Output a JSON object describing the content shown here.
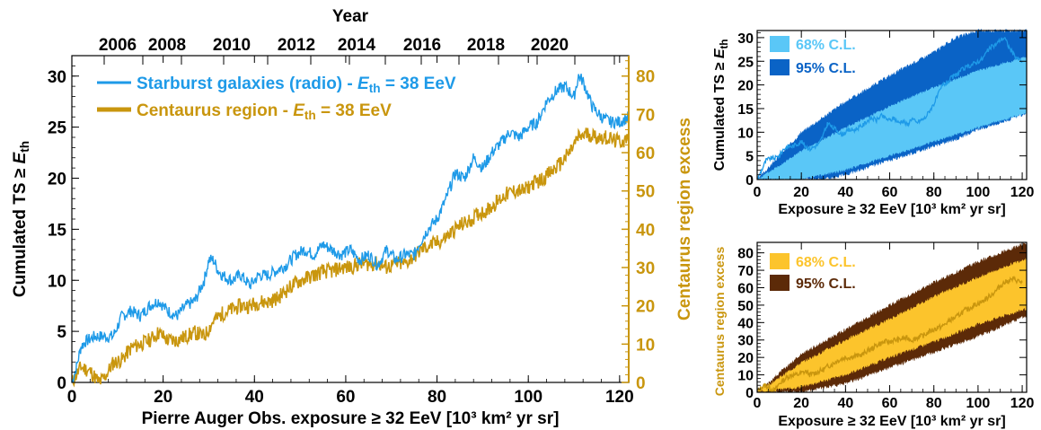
{
  "colors": {
    "starburst": "#1e9ae8",
    "centaurus": "#c9960e",
    "sb_68": "#5ac7f7",
    "sb_95": "#0a63c6",
    "ca_68": "#fcc42c",
    "ca_95": "#5c2a08"
  },
  "chart_data": [
    {
      "type": "line",
      "top_axis_title": "Year",
      "top_axis_ticks": [
        "2006",
        "2008",
        "2010",
        "2012",
        "2014",
        "2016",
        "2018",
        "2020"
      ],
      "xlabel": "Pierre Auger Obs. exposure ≥ 32 EeV  [10³ km² yr sr]",
      "ylabel_left": "Cumulated TS ≥ E_th",
      "ylabel_right": "Centaurus region excess",
      "xlim": [
        0,
        122
      ],
      "ylim_left": [
        0,
        32
      ],
      "ylim_right": [
        0,
        85.33
      ],
      "x_ticks": [
        0,
        20,
        40,
        60,
        80,
        100,
        120
      ],
      "y_ticks_left": [
        0,
        5,
        10,
        15,
        20,
        25,
        30
      ],
      "y_ticks_right": [
        0,
        10,
        20,
        30,
        40,
        50,
        60,
        70,
        80
      ],
      "series": [
        {
          "name": "Starburst galaxies (radio) - E_th = 38 EeV",
          "legend_main": "Starburst galaxies (radio) - ",
          "legend_sym": "E",
          "legend_sub": "th",
          "legend_tail": " = 38 EeV",
          "axis": "left",
          "x": [
            0,
            1,
            2,
            3,
            5,
            7,
            9,
            11,
            13,
            15,
            17,
            19,
            21,
            23,
            25,
            27,
            29,
            30,
            31,
            32,
            33,
            35,
            37,
            39,
            41,
            43,
            45,
            47,
            49,
            51,
            53,
            55,
            57,
            59,
            61,
            63,
            65,
            67,
            69,
            71,
            73,
            75,
            76,
            78,
            80,
            82,
            84,
            86,
            88,
            90,
            92,
            94,
            96,
            98,
            100,
            102,
            104,
            106,
            108,
            110,
            111,
            112,
            114,
            116,
            118,
            120,
            122
          ],
          "y": [
            0,
            1.5,
            3.5,
            4,
            4.5,
            4.5,
            4.5,
            6.5,
            7,
            6.5,
            7.5,
            8,
            7,
            6.5,
            7.5,
            8,
            10,
            12,
            12,
            11,
            10.5,
            10,
            10.5,
            9.5,
            10.5,
            10.5,
            11,
            11.5,
            12.5,
            13,
            12.5,
            13.5,
            13,
            12.5,
            13,
            12,
            12.5,
            11.5,
            13,
            12,
            12.5,
            12.5,
            13.5,
            15,
            16,
            18,
            20.5,
            20,
            22,
            21,
            22.5,
            23.5,
            24.5,
            24,
            25,
            25.5,
            27.5,
            28.5,
            29,
            28,
            30,
            29.5,
            27,
            26,
            25.5,
            25.5,
            26
          ]
        },
        {
          "name": "Centaurus region - E_th = 38 EeV",
          "legend_main": "Centaurus region - ",
          "legend_sym": "E",
          "legend_sub": "th",
          "legend_tail": " = 38 EeV",
          "axis": "right",
          "x": [
            0,
            2,
            4,
            6,
            7,
            9,
            11,
            13,
            15,
            17,
            19,
            21,
            23,
            25,
            27,
            29,
            31,
            33,
            35,
            37,
            39,
            41,
            43,
            45,
            47,
            49,
            51,
            53,
            55,
            57,
            59,
            61,
            63,
            65,
            67,
            69,
            71,
            73,
            75,
            77,
            79,
            81,
            83,
            85,
            87,
            89,
            91,
            93,
            95,
            97,
            99,
            101,
            103,
            105,
            107,
            109,
            110,
            111,
            113,
            115,
            117,
            119,
            121,
            122
          ],
          "y": [
            0,
            4,
            3,
            0,
            1,
            5,
            6,
            9,
            10,
            11,
            13,
            11,
            11,
            12,
            13,
            12,
            16,
            18,
            19,
            20,
            20,
            21,
            21,
            22,
            24,
            26,
            27,
            28,
            29,
            29,
            30,
            30,
            31,
            31,
            31,
            30,
            31,
            31,
            33,
            35,
            36,
            37,
            39,
            41,
            42,
            44,
            45,
            47,
            49,
            50,
            50,
            52,
            53,
            55,
            57,
            60,
            62,
            64,
            65,
            64,
            64,
            63,
            63,
            64
          ]
        }
      ]
    },
    {
      "type": "area",
      "xlabel": "Exposure ≥ 32 EeV  [10³ km² yr sr]",
      "ylabel": "Cumulated TS ≥ E_th",
      "xlim": [
        0,
        122
      ],
      "ylim": [
        0,
        31.5
      ],
      "x_ticks": [
        0,
        20,
        40,
        60,
        80,
        100,
        120
      ],
      "y_ticks": [
        0,
        5,
        10,
        15,
        20,
        25,
        30
      ],
      "legend": [
        "68% C.L.",
        "95% C.L."
      ],
      "bands": {
        "x": [
          0,
          122
        ],
        "band_95_low": [
          0,
          5
        ],
        "band_95_high": [
          0,
          31.5
        ],
        "band_68_low": [
          0,
          14
        ],
        "band_68_high": [
          0,
          25
        ]
      },
      "band_95_low_x": [
        0,
        20,
        30,
        40,
        50,
        60,
        70,
        80,
        90,
        100,
        110,
        122
      ],
      "band_95_low_y": [
        0,
        0,
        0,
        1,
        2.5,
        4,
        5.5,
        7,
        8.5,
        10.5,
        12,
        14
      ],
      "band_95_high_x": [
        0,
        20,
        40,
        60,
        80,
        90,
        100,
        110,
        122
      ],
      "band_95_high_y": [
        0,
        10,
        16.5,
        22,
        27,
        30,
        31.5,
        31.5,
        31.5
      ],
      "band_68_low_x": [
        0,
        20,
        40,
        60,
        80,
        100,
        122
      ],
      "band_68_low_y": [
        0,
        0,
        2,
        5,
        8,
        11,
        14
      ],
      "band_68_high_x": [
        0,
        20,
        40,
        60,
        80,
        100,
        122
      ],
      "band_68_high_y": [
        0,
        6,
        11,
        15.5,
        19.5,
        23,
        26
      ],
      "series": [
        {
          "axis": "left",
          "x": [
            0,
            2,
            4,
            6,
            8,
            10,
            12,
            14,
            16,
            18,
            20,
            22,
            24,
            26,
            28,
            30,
            32,
            34,
            36,
            38,
            40,
            42,
            44,
            46,
            48,
            50,
            52,
            54,
            56,
            58,
            60,
            62,
            64,
            66,
            68,
            70,
            72,
            74,
            76,
            78,
            80,
            82,
            84,
            86,
            88,
            90,
            92,
            94,
            96,
            98,
            100,
            102,
            104,
            106,
            108,
            110,
            112,
            114,
            116,
            118,
            120
          ],
          "y": [
            0,
            2,
            4,
            4.5,
            4.5,
            5,
            6.5,
            7,
            7,
            7.5,
            8,
            7,
            6.5,
            7,
            7.5,
            9.5,
            12,
            11,
            10.5,
            9.5,
            10,
            10.5,
            10.5,
            11,
            11.5,
            12.5,
            13,
            12.5,
            13.5,
            13,
            12.5,
            13,
            12,
            12.5,
            11.5,
            13,
            12,
            12.5,
            13,
            14.5,
            16,
            18,
            20,
            20.5,
            21.5,
            22,
            23,
            23.5,
            24,
            24.5,
            25,
            25.5,
            27,
            28,
            28.5,
            29.5,
            30,
            28,
            26.5,
            25.5,
            25
          ]
        }
      ]
    },
    {
      "type": "area",
      "xlabel": "Exposure ≥ 32 EeV  [10³ km² yr sr]",
      "ylabel": "Centaurus region excess",
      "xlim": [
        0,
        122
      ],
      "ylim": [
        0,
        86
      ],
      "x_ticks": [
        0,
        20,
        40,
        60,
        80,
        100,
        120
      ],
      "y_ticks": [
        0,
        10,
        20,
        30,
        40,
        50,
        60,
        70,
        80
      ],
      "legend": [
        "68% C.L.",
        "95% C.L."
      ],
      "band_95_low_x": [
        0,
        20,
        40,
        60,
        80,
        100,
        122
      ],
      "band_95_low_y": [
        0,
        0,
        5,
        14,
        23,
        32,
        44
      ],
      "band_95_high_x": [
        0,
        20,
        40,
        60,
        80,
        100,
        122
      ],
      "band_95_high_y": [
        0,
        22,
        36,
        50,
        63,
        75,
        86
      ],
      "band_68_low_x": [
        0,
        20,
        40,
        60,
        80,
        100,
        122
      ],
      "band_68_low_y": [
        0,
        3,
        10,
        20,
        29,
        39,
        48
      ],
      "band_68_high_x": [
        0,
        20,
        40,
        60,
        80,
        100,
        122
      ],
      "band_68_high_y": [
        0,
        17,
        30,
        42,
        55,
        66,
        77
      ],
      "series": [
        {
          "axis": "left",
          "x": [
            0,
            2,
            4,
            6,
            8,
            10,
            12,
            14,
            16,
            18,
            20,
            22,
            24,
            26,
            28,
            30,
            32,
            34,
            36,
            38,
            40,
            42,
            44,
            46,
            48,
            50,
            52,
            54,
            56,
            58,
            60,
            62,
            64,
            66,
            68,
            70,
            72,
            74,
            76,
            78,
            80,
            82,
            84,
            86,
            88,
            90,
            92,
            94,
            96,
            98,
            100,
            102,
            104,
            106,
            108,
            110,
            112,
            114,
            116,
            118,
            120
          ],
          "y": [
            0,
            3,
            4,
            2,
            1,
            5,
            7,
            9,
            10,
            10,
            11,
            12,
            10,
            11,
            12,
            13,
            15,
            16,
            18,
            19,
            20,
            20,
            21,
            21,
            22,
            24,
            25,
            27,
            28,
            29,
            29,
            30,
            30,
            31,
            31,
            30,
            31,
            32,
            33,
            35,
            36,
            37,
            38,
            40,
            42,
            43,
            45,
            47,
            48,
            50,
            51,
            52,
            54,
            56,
            58,
            61,
            63,
            64,
            65,
            64,
            63
          ]
        }
      ]
    }
  ]
}
